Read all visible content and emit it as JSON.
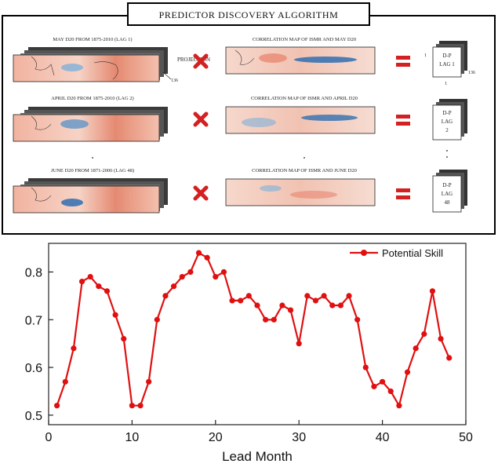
{
  "diagram": {
    "title": "PREDICTOR DISCOVERY ALGORITHM",
    "rows": [
      {
        "left_label": "MAY D20 FROM 1875-2010 (LAG 1)",
        "right_label": "CORRELATION MAP OF ISMR AND MAY D20",
        "result_lines": [
          "D-P",
          "LAG 1"
        ]
      },
      {
        "left_label": "APRIL D20 FROM 1875-2010 (LAG 2)",
        "right_label": "CORRELATION MAP OF ISMR AND APRIL D20",
        "result_lines": [
          "D-P",
          "LAG",
          "2"
        ]
      },
      {
        "left_label": "JUNE D20 FROM 1871-2006 (LAG 48)",
        "right_label": "CORRELATION MAP OF ISMR AND JUNE D20",
        "result_lines": [
          "D-P",
          "LAG",
          "48"
        ]
      }
    ],
    "projection_label": "PROJECTION",
    "dim_label": "136",
    "axis_marks": [
      "1",
      "1"
    ],
    "colors": {
      "cross": "#d42020",
      "equals": "#d42020",
      "warm": "#e8806a",
      "cool": "#2f6fb0"
    }
  },
  "chart_data": {
    "type": "line",
    "xlabel": "Lead Month",
    "ylabel": "",
    "xlim": [
      0,
      50
    ],
    "ylim": [
      0.48,
      0.86
    ],
    "xticks": [
      0,
      10,
      20,
      30,
      40,
      50
    ],
    "yticks": [
      0.5,
      0.6,
      0.7,
      0.8
    ],
    "legend_position": "top-right",
    "color": "#e01010",
    "series": [
      {
        "name": "Potential Skill",
        "x": [
          1,
          2,
          3,
          4,
          5,
          6,
          7,
          8,
          9,
          10,
          11,
          12,
          13,
          14,
          15,
          16,
          17,
          18,
          19,
          20,
          21,
          22,
          23,
          24,
          25,
          26,
          27,
          28,
          29,
          30,
          31,
          32,
          33,
          34,
          35,
          36,
          37,
          38,
          39,
          40,
          41,
          42,
          43,
          44,
          45,
          46,
          47,
          48
        ],
        "values": [
          0.52,
          0.57,
          0.64,
          0.78,
          0.79,
          0.77,
          0.76,
          0.71,
          0.66,
          0.52,
          0.52,
          0.57,
          0.7,
          0.75,
          0.77,
          0.79,
          0.8,
          0.84,
          0.83,
          0.79,
          0.8,
          0.74,
          0.74,
          0.75,
          0.73,
          0.7,
          0.7,
          0.73,
          0.72,
          0.65,
          0.75,
          0.74,
          0.75,
          0.73,
          0.73,
          0.75,
          0.7,
          0.6,
          0.56,
          0.57,
          0.55,
          0.52,
          0.59,
          0.64,
          0.67,
          0.76,
          0.66,
          0.62
        ]
      }
    ]
  }
}
